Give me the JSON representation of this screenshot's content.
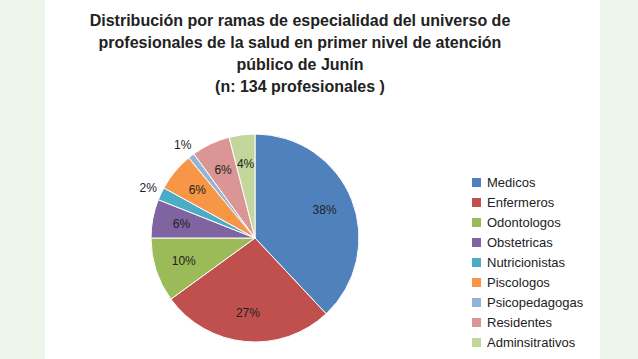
{
  "chart_data": {
    "type": "pie",
    "title": "Distribución por ramas de especialidad del universo de profesionales de la salud en primer nivel de atención público de Junín",
    "subtitle": "(n: 134 profesionales )",
    "categories": [
      "Medicos",
      "Enfermeros",
      "Odontologos",
      "Obstetricas",
      "Nutricionistas",
      "Piscologos",
      "Psicopedagogas",
      "Residentes",
      "Adminsitrativos"
    ],
    "values": [
      38,
      27,
      10,
      6,
      2,
      6,
      1,
      6,
      4
    ],
    "value_labels": [
      "38%",
      "27%",
      "10%",
      "6%",
      "2%",
      "6%",
      "1%",
      "6%",
      "4%"
    ],
    "colors": [
      "#4f81bd",
      "#c0504d",
      "#9bbb59",
      "#8064a2",
      "#4bacc6",
      "#f79646",
      "#95b3d7",
      "#d99694",
      "#c3d69b"
    ],
    "data_labels": true,
    "legend": "right"
  }
}
